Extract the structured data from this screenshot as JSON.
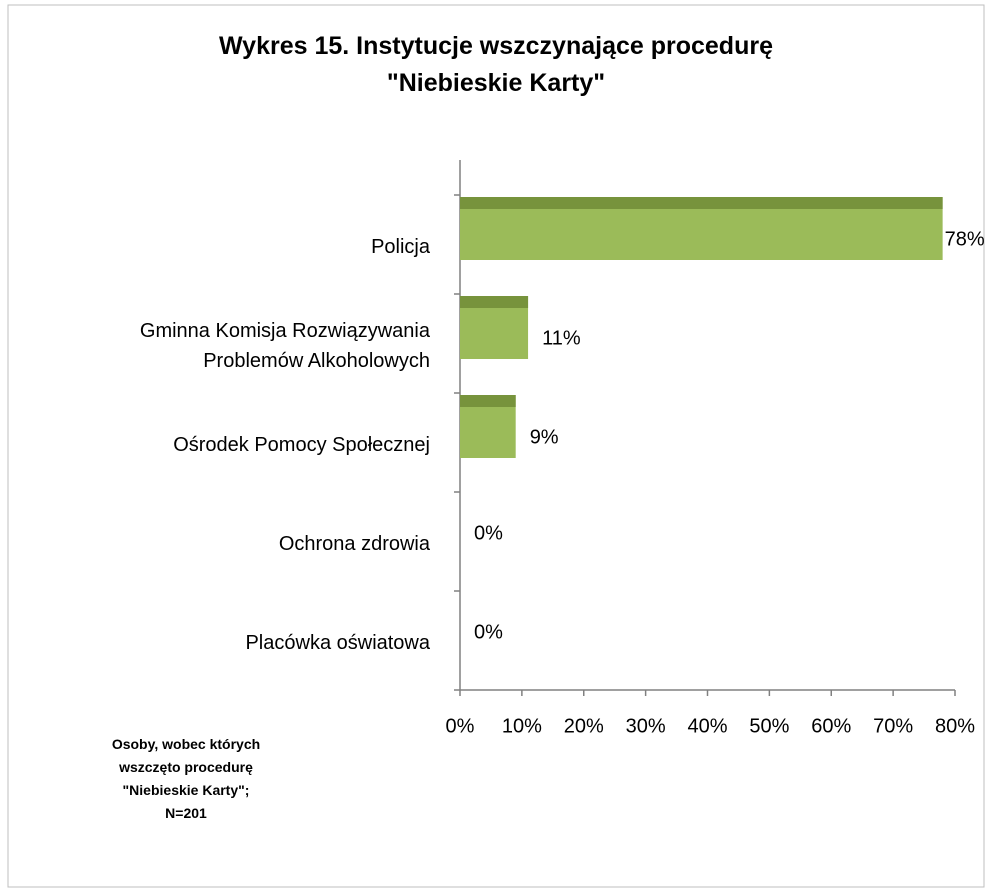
{
  "chart_data": {
    "type": "bar",
    "orientation": "horizontal",
    "title": "Wykres 15. Instytucje wszczynające procedurę \"Niebieskie Karty\"",
    "categories": [
      "Policja",
      "Gminna Komisja Rozwiązywania Problemów Alkoholowych",
      "Ośrodek Pomocy Społecznej",
      "Ochrona zdrowia",
      "Placówka oświatowa"
    ],
    "values": [
      78,
      11,
      9,
      0,
      0
    ],
    "value_labels": [
      "78%",
      "11%",
      "9%",
      "0%",
      "0%"
    ],
    "color": "#9bbb59",
    "edge_color": "#77933c",
    "xlim": [
      0,
      80
    ],
    "xticks": [
      {
        "value": 0,
        "label": "0%"
      },
      {
        "value": 10,
        "label": "10%"
      },
      {
        "value": 20,
        "label": "20%"
      },
      {
        "value": 30,
        "label": "30%"
      },
      {
        "value": 40,
        "label": "40%"
      },
      {
        "value": 50,
        "label": "50%"
      },
      {
        "value": 60,
        "label": "60%"
      },
      {
        "value": 70,
        "label": "70%"
      },
      {
        "value": 80,
        "label": "80%"
      }
    ],
    "grid": false,
    "annotation": [
      "Osoby, wobec których",
      "wszczęto procedurę",
      "\"Niebieskie Karty\";",
      "N=201"
    ]
  }
}
